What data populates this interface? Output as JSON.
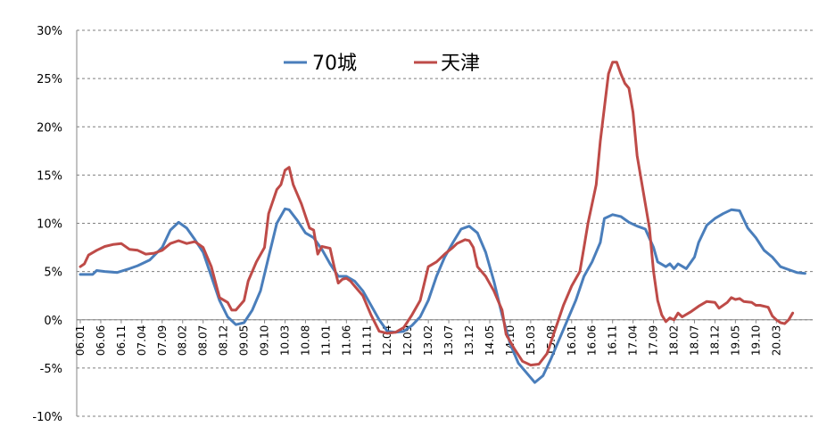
{
  "chart_data": {
    "type": "line",
    "title": "",
    "xlabel": "",
    "ylabel": "",
    "ylim": [
      -10,
      30
    ],
    "yticks": [
      "30%",
      "25%",
      "20%",
      "15%",
      "10%",
      "5%",
      "0%",
      "-5%",
      "-10%"
    ],
    "ytick_values": [
      30,
      25,
      20,
      15,
      10,
      5,
      0,
      -5,
      -10
    ],
    "xticks": [
      "06.01",
      "06.06",
      "06.11",
      "07.04",
      "07.09",
      "08.02",
      "08.07",
      "08.12",
      "09.05",
      "09.10",
      "10.03",
      "10.08",
      "11.01",
      "11.06",
      "11.11",
      "12.04",
      "12.09",
      "13.02",
      "13.07",
      "13.12",
      "14.05",
      "14.10",
      "15.03",
      "15.08",
      "16.01",
      "16.06",
      "16.11",
      "17.04",
      "17.09",
      "18.02",
      "18.07",
      "18.12",
      "19.05",
      "19.10",
      "20.03"
    ],
    "xtick_values": [
      0,
      5,
      10,
      15,
      20,
      25,
      30,
      35,
      40,
      45,
      50,
      55,
      60,
      65,
      70,
      75,
      80,
      85,
      90,
      95,
      100,
      105,
      110,
      115,
      120,
      125,
      130,
      135,
      140,
      145,
      150,
      155,
      160,
      165,
      170
    ],
    "xlim": [
      0,
      178
    ],
    "grid": "horizontal dashed",
    "legend_position": "top-left",
    "series": [
      {
        "name": "70城",
        "color": "#4a7ebb",
        "points": [
          [
            0,
            4.7
          ],
          [
            3,
            4.7
          ],
          [
            4,
            5.1
          ],
          [
            6,
            5.0
          ],
          [
            9,
            4.9
          ],
          [
            12,
            5.3
          ],
          [
            14,
            5.6
          ],
          [
            17,
            6.2
          ],
          [
            20,
            7.5
          ],
          [
            22,
            9.3
          ],
          [
            24,
            10.1
          ],
          [
            26,
            9.5
          ],
          [
            28,
            8.3
          ],
          [
            30,
            7.0
          ],
          [
            32,
            4.5
          ],
          [
            34,
            2.0
          ],
          [
            36,
            0.3
          ],
          [
            38,
            -0.5
          ],
          [
            40,
            -0.3
          ],
          [
            42,
            1.0
          ],
          [
            44,
            3.0
          ],
          [
            46,
            6.5
          ],
          [
            48,
            10.0
          ],
          [
            50,
            11.5
          ],
          [
            51,
            11.4
          ],
          [
            53,
            10.3
          ],
          [
            55,
            9.0
          ],
          [
            57,
            8.5
          ],
          [
            59,
            7.3
          ],
          [
            61,
            5.8
          ],
          [
            63,
            4.5
          ],
          [
            65,
            4.5
          ],
          [
            67,
            4.0
          ],
          [
            69,
            3.0
          ],
          [
            71,
            1.5
          ],
          [
            73,
            0.0
          ],
          [
            75,
            -1.2
          ],
          [
            77,
            -1.3
          ],
          [
            79,
            -1.2
          ],
          [
            81,
            -0.6
          ],
          [
            83,
            0.3
          ],
          [
            85,
            2.0
          ],
          [
            87,
            4.5
          ],
          [
            89,
            6.5
          ],
          [
            91,
            8.0
          ],
          [
            93,
            9.4
          ],
          [
            95,
            9.7
          ],
          [
            97,
            9.0
          ],
          [
            99,
            7.0
          ],
          [
            101,
            4.0
          ],
          [
            103,
            0.5
          ],
          [
            105,
            -2.5
          ],
          [
            107,
            -4.5
          ],
          [
            109,
            -5.5
          ],
          [
            111,
            -6.5
          ],
          [
            113,
            -5.8
          ],
          [
            115,
            -4.0
          ],
          [
            117,
            -2.0
          ],
          [
            119,
            0.0
          ],
          [
            121,
            2.0
          ],
          [
            123,
            4.5
          ],
          [
            125,
            6.0
          ],
          [
            127,
            8.0
          ],
          [
            128,
            10.5
          ],
          [
            130,
            10.9
          ],
          [
            132,
            10.7
          ],
          [
            134,
            10.1
          ],
          [
            136,
            9.7
          ],
          [
            138,
            9.4
          ],
          [
            140,
            7.5
          ],
          [
            141,
            6.0
          ],
          [
            143,
            5.5
          ],
          [
            144,
            5.8
          ],
          [
            145,
            5.3
          ],
          [
            146,
            5.8
          ],
          [
            148,
            5.3
          ],
          [
            150,
            6.5
          ],
          [
            151,
            8.0
          ],
          [
            153,
            9.8
          ],
          [
            155,
            10.5
          ],
          [
            157,
            11.0
          ],
          [
            159,
            11.4
          ],
          [
            161,
            11.3
          ],
          [
            163,
            9.5
          ],
          [
            165,
            8.5
          ],
          [
            167,
            7.2
          ],
          [
            169,
            6.5
          ],
          [
            171,
            5.5
          ],
          [
            173,
            5.2
          ],
          [
            175,
            4.9
          ],
          [
            177,
            4.8
          ]
        ]
      },
      {
        "name": "天津",
        "color": "#be4b48",
        "points": [
          [
            0,
            5.5
          ],
          [
            1,
            5.8
          ],
          [
            2,
            6.7
          ],
          [
            4,
            7.2
          ],
          [
            6,
            7.6
          ],
          [
            8,
            7.8
          ],
          [
            10,
            7.9
          ],
          [
            12,
            7.3
          ],
          [
            14,
            7.2
          ],
          [
            16,
            6.8
          ],
          [
            18,
            6.9
          ],
          [
            20,
            7.2
          ],
          [
            22,
            7.9
          ],
          [
            24,
            8.2
          ],
          [
            26,
            7.9
          ],
          [
            28,
            8.1
          ],
          [
            30,
            7.5
          ],
          [
            32,
            5.5
          ],
          [
            34,
            2.3
          ],
          [
            36,
            1.8
          ],
          [
            37,
            1.0
          ],
          [
            38,
            1.0
          ],
          [
            40,
            2.0
          ],
          [
            41,
            4.0
          ],
          [
            43,
            6.0
          ],
          [
            45,
            7.5
          ],
          [
            46,
            11.0
          ],
          [
            48,
            13.5
          ],
          [
            49,
            14.0
          ],
          [
            50,
            15.5
          ],
          [
            51,
            15.8
          ],
          [
            52,
            14.0
          ],
          [
            54,
            12.0
          ],
          [
            56,
            9.5
          ],
          [
            57,
            9.3
          ],
          [
            58,
            6.8
          ],
          [
            59,
            7.6
          ],
          [
            61,
            7.4
          ],
          [
            62,
            5.5
          ],
          [
            63,
            3.8
          ],
          [
            64,
            4.2
          ],
          [
            65,
            4.3
          ],
          [
            66,
            4.0
          ],
          [
            67,
            3.5
          ],
          [
            69,
            2.5
          ],
          [
            71,
            0.5
          ],
          [
            73,
            -1.2
          ],
          [
            75,
            -1.4
          ],
          [
            77,
            -1.3
          ],
          [
            79,
            -0.8
          ],
          [
            81,
            0.5
          ],
          [
            83,
            2.0
          ],
          [
            85,
            5.5
          ],
          [
            87,
            6.0
          ],
          [
            89,
            6.8
          ],
          [
            91,
            7.5
          ],
          [
            92,
            7.9
          ],
          [
            94,
            8.3
          ],
          [
            95,
            8.2
          ],
          [
            96,
            7.5
          ],
          [
            97,
            5.5
          ],
          [
            99,
            4.5
          ],
          [
            101,
            3.0
          ],
          [
            103,
            1.0
          ],
          [
            104,
            -1.5
          ],
          [
            106,
            -3.0
          ],
          [
            108,
            -4.3
          ],
          [
            110,
            -4.7
          ],
          [
            112,
            -4.6
          ],
          [
            114,
            -3.5
          ],
          [
            116,
            -1.0
          ],
          [
            118,
            1.5
          ],
          [
            120,
            3.5
          ],
          [
            122,
            5.0
          ],
          [
            123,
            7.5
          ],
          [
            124,
            10.0
          ],
          [
            126,
            14.0
          ],
          [
            127,
            18.5
          ],
          [
            128,
            22.0
          ],
          [
            129,
            25.5
          ],
          [
            130,
            26.7
          ],
          [
            131,
            26.7
          ],
          [
            132,
            25.5
          ],
          [
            133,
            24.5
          ],
          [
            134,
            24.0
          ],
          [
            135,
            21.5
          ],
          [
            136,
            17.0
          ],
          [
            137,
            14.5
          ],
          [
            138,
            12.0
          ],
          [
            139,
            9.5
          ],
          [
            140,
            5.0
          ],
          [
            141,
            2.0
          ],
          [
            142,
            0.5
          ],
          [
            143,
            -0.2
          ],
          [
            144,
            0.2
          ],
          [
            145,
            0.0
          ],
          [
            146,
            0.7
          ],
          [
            147,
            0.3
          ],
          [
            149,
            0.8
          ],
          [
            151,
            1.4
          ],
          [
            153,
            1.9
          ],
          [
            155,
            1.8
          ],
          [
            156,
            1.2
          ],
          [
            158,
            1.8
          ],
          [
            159,
            2.3
          ],
          [
            160,
            2.1
          ],
          [
            161,
            2.2
          ],
          [
            162,
            1.9
          ],
          [
            164,
            1.8
          ],
          [
            165,
            1.5
          ],
          [
            166,
            1.5
          ],
          [
            168,
            1.3
          ],
          [
            169,
            0.4
          ],
          [
            170,
            0.0
          ],
          [
            171,
            -0.3
          ],
          [
            172,
            -0.4
          ],
          [
            173,
            0.0
          ],
          [
            174,
            0.7
          ]
        ]
      }
    ]
  }
}
